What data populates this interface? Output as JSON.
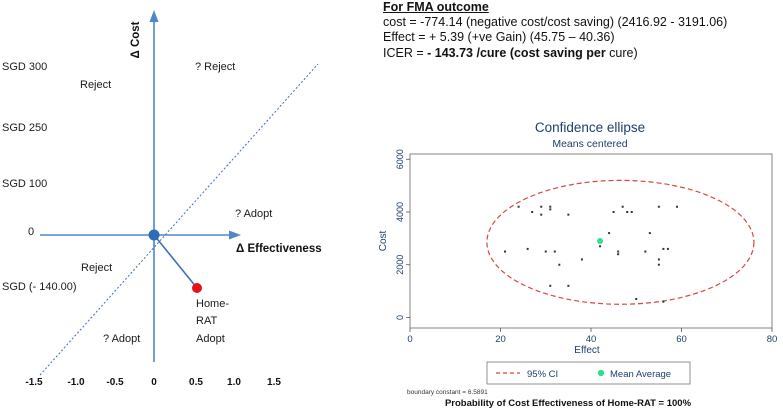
{
  "plane": {
    "y_axis_title": "Δ Cost",
    "x_axis_title": "Δ Effectiveness",
    "y_labels": [
      "SGD 300",
      "SGD 250",
      "SGD 100",
      "0",
      "SGD (- 140.00)"
    ],
    "x_ticks": [
      "-1.5",
      "-1.0",
      "-0.5",
      "0",
      "0.5",
      "1.0",
      "1.5"
    ],
    "quadrant_labels": [
      "Reject",
      "? Reject",
      "? Adopt",
      "Reject",
      "? Adopt"
    ],
    "point_label": [
      "Home-",
      "RAT",
      "Adopt"
    ],
    "point_color": "#e8101a",
    "origin_color": "#2d6db5",
    "axis_color": "#4f87c7"
  },
  "fma": {
    "heading": "For FMA outcome",
    "cost_line": "cost = -774.14 (negative cost/cost saving) (2416.92 - 3191.06)",
    "effect_line": "Effect = + 5.39 (+ve Gain) (45.75 – 40.36)",
    "icer_prefix": "ICER = ",
    "icer_bold1": "- 143.73 /cure (cost saving per ",
    "icer_tail": "cure)"
  },
  "ellipse_chart": {
    "title": "Confidence ellipse",
    "subtitle": "Means centered",
    "x_label": "Effect",
    "y_label": "Cost",
    "legend_ci": "95% CI",
    "legend_mean": "Mean Average",
    "boundary_note": "boundary constant = 6.5891",
    "probability_text": "Probability of Cost Effectiveness of Home-RAT = 100%",
    "ci_color": "#d9473f",
    "mean_color": "#2ee08a"
  },
  "chart_data": {
    "type": "scatter",
    "xlim": [
      0,
      80
    ],
    "ylim": [
      -400,
      6200
    ],
    "x_ticks": [
      0,
      20,
      40,
      60,
      80
    ],
    "y_ticks": [
      0,
      2000,
      4000,
      6000
    ],
    "grid": false,
    "legend_position": "bottom",
    "mean": {
      "x": 42,
      "y": 2900
    },
    "ellipse": {
      "cx": 46.5,
      "cy": 2850,
      "rx": 29.5,
      "ry": 2350
    },
    "points": [
      {
        "x": 24,
        "y": 4200
      },
      {
        "x": 27,
        "y": 4000
      },
      {
        "x": 29,
        "y": 4200
      },
      {
        "x": 31,
        "y": 4100
      },
      {
        "x": 31,
        "y": 4200
      },
      {
        "x": 35,
        "y": 3900
      },
      {
        "x": 45,
        "y": 4000
      },
      {
        "x": 47,
        "y": 4200
      },
      {
        "x": 48,
        "y": 4000
      },
      {
        "x": 55,
        "y": 4200
      },
      {
        "x": 59,
        "y": 4200
      },
      {
        "x": 21,
        "y": 2500
      },
      {
        "x": 26,
        "y": 2600
      },
      {
        "x": 29,
        "y": 3900
      },
      {
        "x": 30,
        "y": 2500
      },
      {
        "x": 32,
        "y": 2500
      },
      {
        "x": 33,
        "y": 2000
      },
      {
        "x": 38,
        "y": 2200
      },
      {
        "x": 42,
        "y": 2700
      },
      {
        "x": 44,
        "y": 3200
      },
      {
        "x": 46,
        "y": 2500
      },
      {
        "x": 46,
        "y": 2400
      },
      {
        "x": 52,
        "y": 2500
      },
      {
        "x": 53,
        "y": 3200
      },
      {
        "x": 55,
        "y": 2200
      },
      {
        "x": 55,
        "y": 2000
      },
      {
        "x": 56,
        "y": 2600
      },
      {
        "x": 57,
        "y": 2600
      },
      {
        "x": 31,
        "y": 1200
      },
      {
        "x": 35,
        "y": 1200
      },
      {
        "x": 50,
        "y": 700
      },
      {
        "x": 56,
        "y": 600
      },
      {
        "x": 49,
        "y": 4000
      }
    ]
  }
}
